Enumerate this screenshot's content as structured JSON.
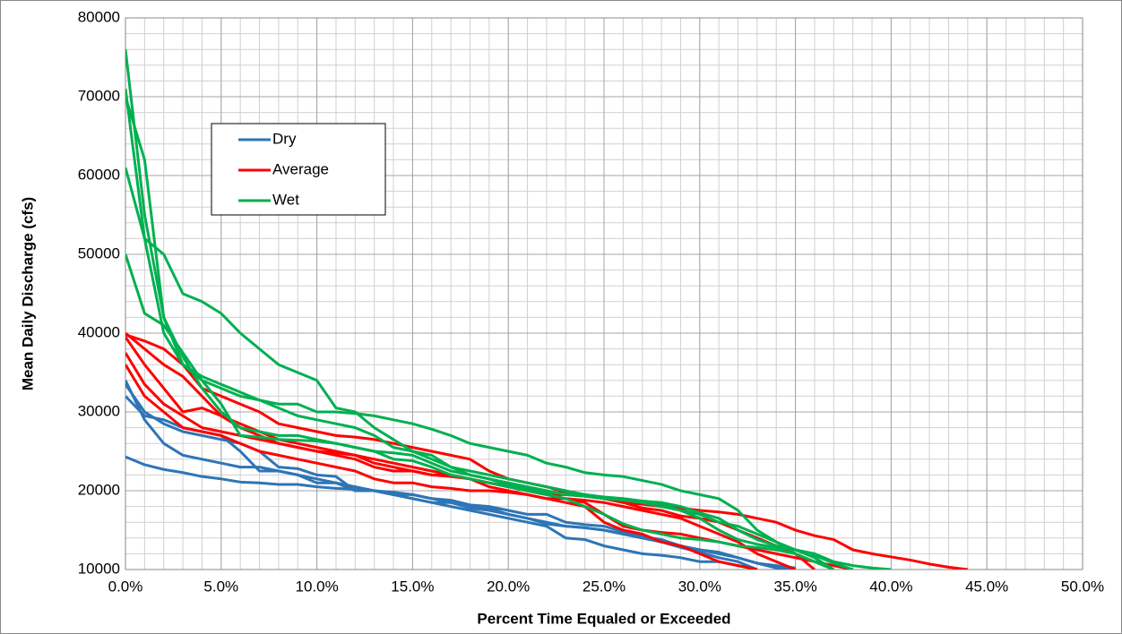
{
  "chart_data": {
    "type": "line",
    "xlabel": "Percent Time Equaled or Exceeded",
    "ylabel": "Mean Daily Discharge (cfs)",
    "xlim": [
      0,
      50
    ],
    "ylim": [
      10000,
      80000
    ],
    "xticks": [
      {
        "value": 0,
        "label": "0.0%"
      },
      {
        "value": 5,
        "label": "5.0%"
      },
      {
        "value": 10,
        "label": "10.0%"
      },
      {
        "value": 15,
        "label": "15.0%"
      },
      {
        "value": 20,
        "label": "20.0%"
      },
      {
        "value": 25,
        "label": "25.0%"
      },
      {
        "value": 30,
        "label": "30.0%"
      },
      {
        "value": 35,
        "label": "35.0%"
      },
      {
        "value": 40,
        "label": "40.0%"
      },
      {
        "value": 45,
        "label": "45.0%"
      },
      {
        "value": 50,
        "label": "50.0%"
      }
    ],
    "yticks": [
      10000,
      20000,
      30000,
      40000,
      50000,
      60000,
      70000,
      80000
    ],
    "x_minor_step": 1,
    "y_minor_step": 2000,
    "grid": true,
    "legend": "upper left",
    "x": [
      0,
      1,
      2,
      3,
      4,
      5,
      6,
      7,
      8,
      9,
      10,
      11,
      12,
      13,
      14,
      15,
      16,
      17,
      18,
      19,
      20,
      21,
      22,
      23,
      24,
      25,
      26,
      27,
      28,
      29,
      30,
      31,
      32,
      33,
      34,
      35,
      36,
      37,
      38,
      39,
      40,
      41,
      42,
      43,
      44,
      45
    ],
    "series": [
      {
        "name": "Dry",
        "color": "#2e75b6",
        "lines": [
          [
            34000,
            29000,
            26000,
            24500,
            24000,
            23500,
            23000,
            23000,
            22500,
            22000,
            21000,
            21000,
            20000,
            20000,
            19500,
            19000,
            18500,
            18000,
            17500,
            17000,
            16500,
            16000,
            15500,
            14000,
            13800,
            13000,
            12500,
            12000,
            11800,
            11500,
            11000,
            11000,
            10500,
            10000,
            null,
            null,
            null,
            null,
            null,
            null,
            null,
            null,
            null,
            null,
            null,
            null
          ],
          [
            32000,
            29500,
            29000,
            28000,
            27500,
            27000,
            25000,
            22500,
            22500,
            22000,
            21500,
            21000,
            20500,
            20000,
            19500,
            19500,
            19000,
            18500,
            18000,
            17800,
            17000,
            16500,
            16000,
            15500,
            15300,
            15000,
            14500,
            14000,
            13500,
            13000,
            12500,
            12000,
            11500,
            10800,
            10500,
            10200,
            null,
            null,
            null,
            null,
            null,
            null,
            null,
            null,
            null,
            null
          ],
          [
            24300,
            23300,
            22700,
            22300,
            21800,
            21500,
            21100,
            21000,
            20800,
            20800,
            20500,
            20300,
            20200,
            20000,
            19800,
            19500,
            19000,
            18800,
            18200,
            18000,
            17500,
            17000,
            17000,
            16000,
            15700,
            15500,
            14800,
            14200,
            13800,
            13000,
            12500,
            12200,
            11500,
            10800,
            10200,
            10000,
            null,
            null,
            null,
            null,
            null,
            null,
            null,
            null,
            null,
            null
          ],
          [
            33500,
            30000,
            28500,
            27500,
            27000,
            26500,
            26000,
            25000,
            23000,
            22800,
            22000,
            21800,
            20000,
            20000,
            19500,
            19000,
            18500,
            18500,
            17800,
            17500,
            17000,
            16500,
            15800,
            15500,
            15300,
            15000,
            14500,
            14000,
            13500,
            12800,
            12200,
            11500,
            11000,
            10000,
            null,
            null,
            null,
            null,
            null,
            null,
            null,
            null,
            null,
            null,
            null,
            null
          ]
        ]
      },
      {
        "name": "Average",
        "color": "#ff0000",
        "lines": [
          [
            39800,
            39000,
            38000,
            36000,
            33000,
            32000,
            31000,
            30000,
            28500,
            28000,
            27500,
            27000,
            26800,
            26500,
            26000,
            25500,
            25000,
            24500,
            24000,
            22500,
            21500,
            21000,
            20500,
            19800,
            19500,
            19000,
            18500,
            18300,
            18000,
            17800,
            17500,
            17300,
            17000,
            16500,
            16000,
            15000,
            14300,
            13800,
            12500,
            12000,
            11600,
            11200,
            10700,
            10300,
            10000,
            null
          ],
          [
            40000,
            38000,
            36000,
            34500,
            32000,
            29500,
            28500,
            27500,
            26500,
            26000,
            25500,
            25000,
            24500,
            23500,
            23000,
            22500,
            22000,
            22000,
            21500,
            21000,
            20500,
            20000,
            19500,
            19500,
            19300,
            19000,
            18500,
            17800,
            17500,
            16800,
            16500,
            16000,
            15000,
            14000,
            13000,
            12000,
            10000,
            null,
            null,
            null,
            null,
            null,
            null,
            null,
            null,
            null
          ],
          [
            37500,
            33500,
            31000,
            29500,
            28000,
            27500,
            27000,
            26500,
            26000,
            25500,
            25000,
            24800,
            24500,
            24000,
            23500,
            23000,
            22500,
            22000,
            21500,
            20500,
            20000,
            19500,
            19000,
            19000,
            18800,
            18500,
            18000,
            17500,
            17000,
            16500,
            15500,
            14500,
            13500,
            12000,
            11000,
            10000,
            null,
            null,
            null,
            null,
            null,
            null,
            null,
            null,
            null,
            null
          ],
          [
            36000,
            32000,
            30000,
            28000,
            27500,
            27000,
            26000,
            25000,
            24500,
            24000,
            23500,
            23000,
            22500,
            21500,
            21000,
            21000,
            20500,
            20300,
            20000,
            20000,
            19800,
            19500,
            19000,
            18500,
            18000,
            16000,
            15000,
            14500,
            13500,
            13000,
            12000,
            11000,
            10500,
            10000,
            null,
            null,
            null,
            null,
            null,
            null,
            null,
            null,
            null,
            null,
            null,
            null
          ],
          [
            39500,
            36000,
            33000,
            30000,
            30500,
            29500,
            28000,
            27000,
            26000,
            25500,
            25000,
            24500,
            24000,
            23000,
            22500,
            22500,
            22000,
            21800,
            21500,
            21000,
            20500,
            20000,
            19500,
            19000,
            18500,
            17000,
            15500,
            15000,
            14700,
            14500,
            14000,
            13500,
            13000,
            12500,
            12000,
            11500,
            11000,
            10500,
            10000,
            null,
            null,
            null,
            null,
            null,
            null,
            null
          ]
        ]
      },
      {
        "name": "Wet",
        "color": "#00b050",
        "lines": [
          [
            76000,
            55000,
            42000,
            36000,
            34000,
            33000,
            32000,
            31500,
            31000,
            31000,
            30000,
            30000,
            29800,
            29500,
            29000,
            28500,
            27800,
            27000,
            26000,
            25500,
            25000,
            24500,
            23500,
            23000,
            22300,
            22000,
            21800,
            21300,
            20800,
            20000,
            19500,
            19000,
            17500,
            15000,
            13500,
            12000,
            11000,
            10000,
            null,
            null,
            null,
            null,
            null,
            null,
            null,
            null
          ],
          [
            71000,
            52000,
            50000,
            45000,
            44000,
            42500,
            40000,
            38000,
            36000,
            35000,
            34000,
            30500,
            30000,
            28000,
            26500,
            25000,
            24500,
            23000,
            22500,
            22000,
            21500,
            21000,
            20500,
            20000,
            19500,
            19000,
            18800,
            18500,
            18000,
            17500,
            17000,
            16000,
            15500,
            14500,
            13500,
            12500,
            11500,
            10000,
            null,
            null,
            null,
            null,
            null,
            null,
            null,
            null
          ],
          [
            61000,
            52000,
            40000,
            36000,
            34500,
            33500,
            32500,
            31500,
            30500,
            29500,
            29000,
            28500,
            28000,
            27000,
            25500,
            25000,
            24000,
            23000,
            22000,
            21500,
            21000,
            20500,
            20000,
            19500,
            19300,
            19000,
            18800,
            18700,
            18500,
            18000,
            17200,
            16500,
            15000,
            13800,
            13000,
            12500,
            12000,
            11000,
            10500,
            10200,
            10000,
            null,
            null,
            null,
            null,
            null
          ],
          [
            50000,
            42500,
            41000,
            37500,
            34000,
            31000,
            27000,
            26800,
            26500,
            26400,
            26300,
            26000,
            25500,
            25000,
            24800,
            24500,
            23500,
            22500,
            22000,
            21500,
            20700,
            20200,
            19800,
            19600,
            19500,
            19200,
            19000,
            18700,
            18300,
            17500,
            16500,
            15000,
            13800,
            13200,
            12800,
            12500,
            11800,
            10800,
            10000,
            null,
            null,
            null,
            null,
            null,
            null,
            null
          ],
          [
            70000,
            62000,
            42000,
            37000,
            33000,
            30000,
            28000,
            27500,
            27000,
            27000,
            26500,
            26000,
            25500,
            25000,
            24000,
            23800,
            23000,
            22000,
            21500,
            21000,
            20500,
            20000,
            19500,
            19000,
            18000,
            17000,
            15800,
            15000,
            14500,
            14000,
            13800,
            13500,
            13000,
            12800,
            12500,
            12000,
            11000,
            10000,
            null,
            null,
            null,
            null,
            null,
            null,
            null,
            null
          ]
        ]
      }
    ]
  }
}
